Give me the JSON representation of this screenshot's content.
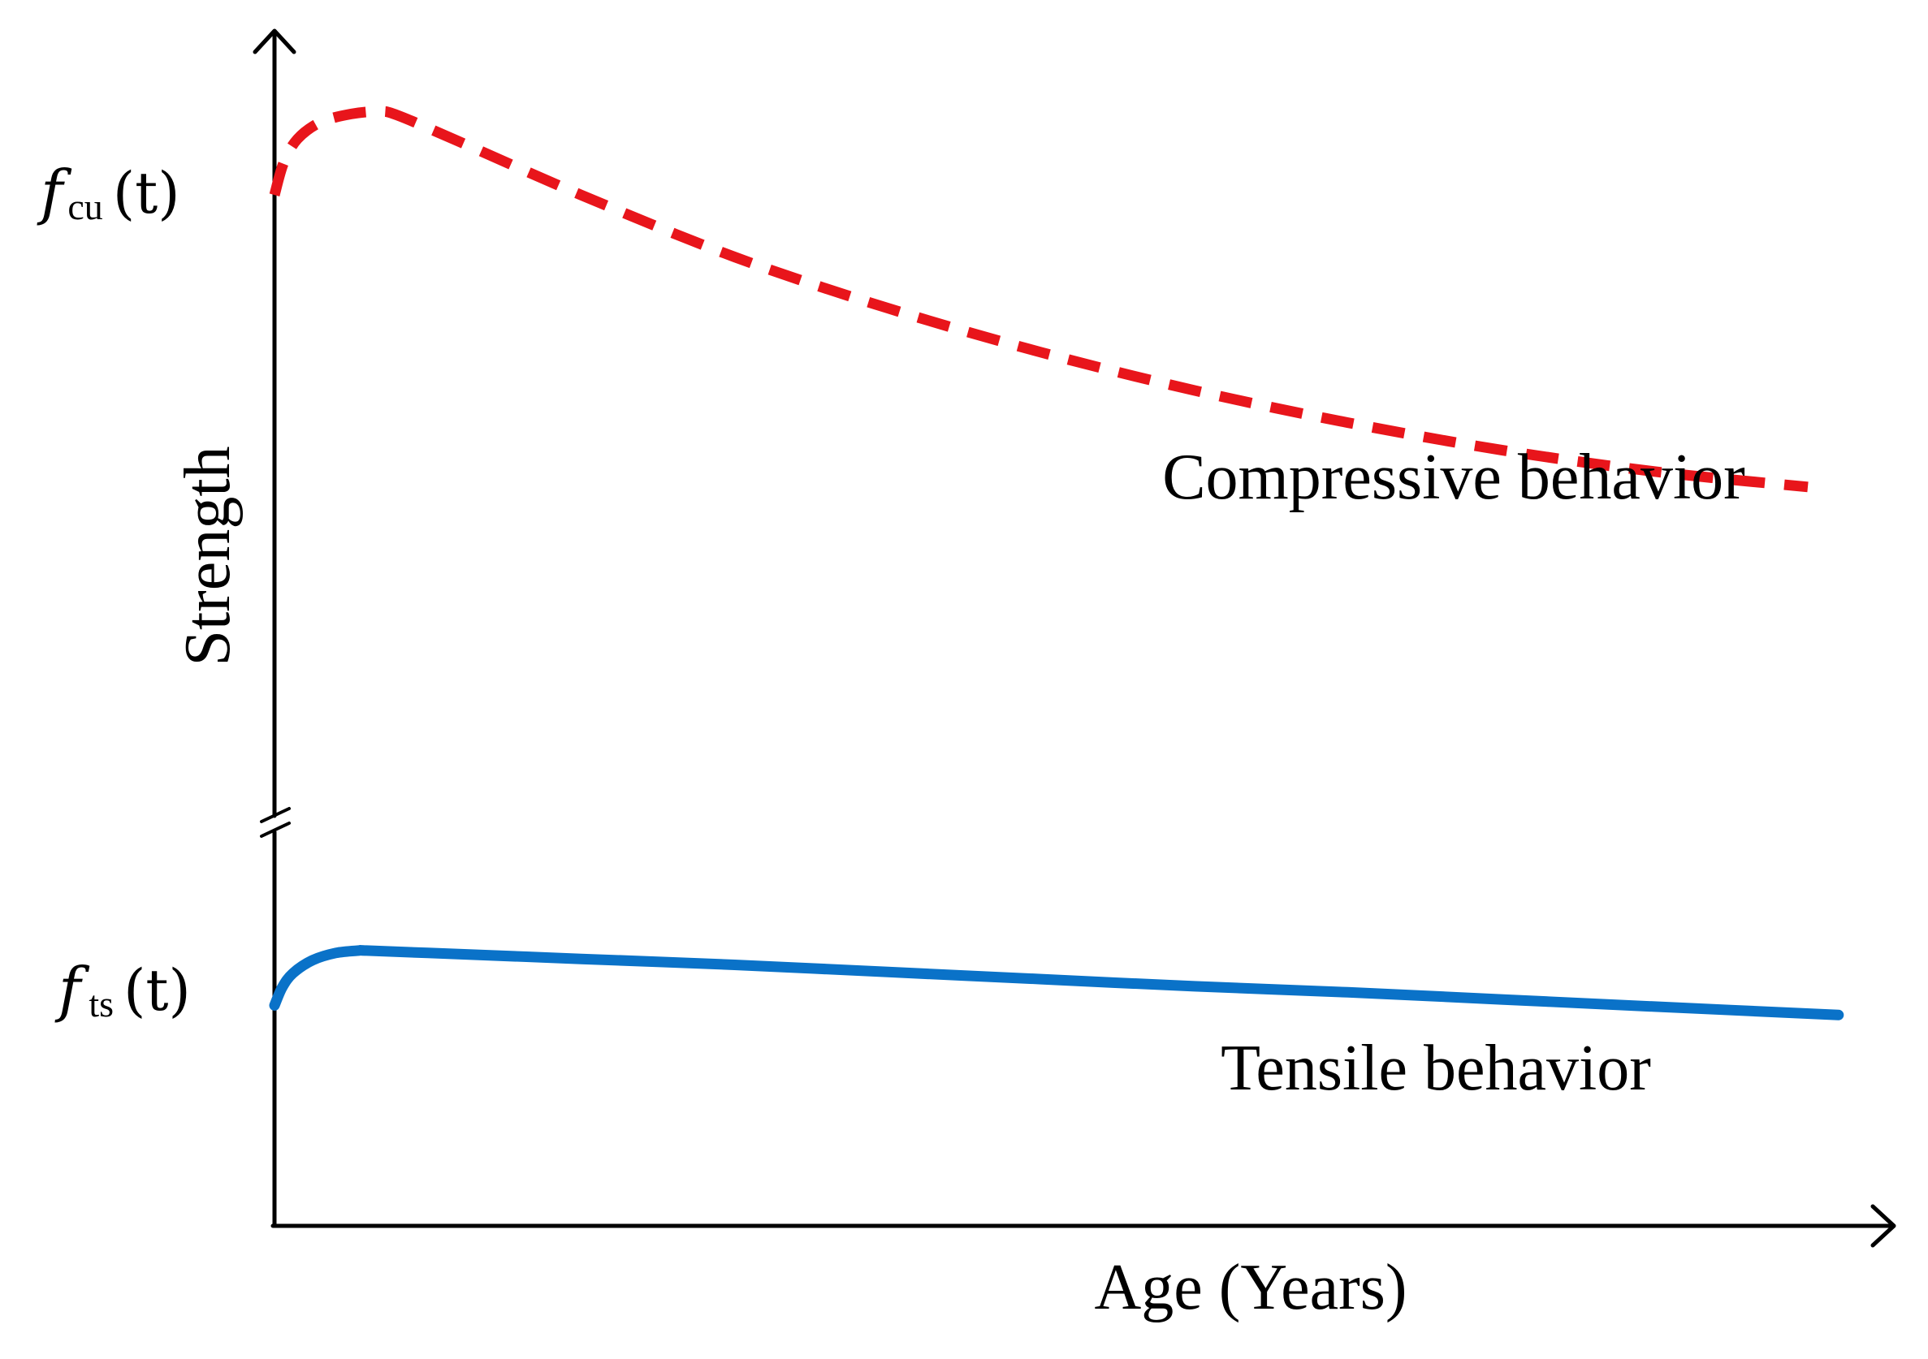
{
  "chart_data": {
    "type": "line",
    "title": "",
    "xlabel": "Age (Years)",
    "ylabel": "Strength",
    "y_ticks": [
      {
        "symbol": "f",
        "subscript": "cu",
        "arg": "(t)"
      },
      {
        "symbol": "f",
        "subscript": "ts",
        "arg": "(t)"
      }
    ],
    "axis_break": true,
    "grid": false,
    "xlim": [
      0,
      10
    ],
    "ylim": [
      0,
      100
    ],
    "series": [
      {
        "name": "Compressive behavior",
        "style": "dashed",
        "color": "#e8151b",
        "x": [
          0,
          0.06,
          0.15,
          0.3,
          0.5,
          0.68,
          0.8,
          1.2,
          2,
          3,
          4,
          5,
          6,
          7,
          8,
          9,
          10
        ],
        "y": [
          86.5,
          89.2,
          91.2,
          92.6,
          93.3,
          93.5,
          93.2,
          91.0,
          86.5,
          81.3,
          77.0,
          73.3,
          70.1,
          67.4,
          65.1,
          63.3,
          62.0
        ]
      },
      {
        "name": "Tensile behavior",
        "style": "solid",
        "color": "#0a72c8",
        "x": [
          0,
          0.05,
          0.12,
          0.25,
          0.4,
          0.55,
          0.6,
          1,
          2,
          3,
          4,
          5,
          6,
          7,
          8,
          9,
          10.2
        ],
        "y": [
          18.5,
          20.0,
          21.2,
          22.3,
          22.9,
          23.1,
          23.1,
          22.9,
          22.4,
          21.9,
          21.3,
          20.7,
          20.1,
          19.6,
          19.0,
          18.4,
          17.7
        ]
      }
    ]
  }
}
